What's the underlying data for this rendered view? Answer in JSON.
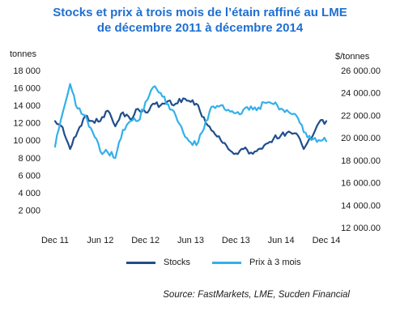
{
  "chart_data": {
    "type": "line",
    "title": [
      "Stocks et prix à trois mois de l’étain raffiné  au LME",
      "de décembre 2011 à décembre 2014"
    ],
    "left_axis": {
      "label": "tonnes",
      "ylim": [
        0,
        18000
      ],
      "ticks": [
        2000,
        4000,
        6000,
        8000,
        10000,
        12000,
        14000,
        16000,
        18000
      ],
      "tick_labels": [
        "2 000",
        "4 000",
        "6 000",
        "8 000",
        "10 000",
        "12 000",
        "14 000",
        "16 000",
        "18 000"
      ]
    },
    "right_axis": {
      "label": "$/tonnes",
      "ylim": [
        12000,
        26000
      ],
      "ticks": [
        12000,
        14000,
        16000,
        18000,
        20000,
        22000,
        24000,
        26000
      ],
      "tick_labels": [
        "12 000.00",
        "14 000.00",
        "16 000.00",
        "18 000.00",
        "20 000.00",
        "22 000.00",
        "24 000.00",
        "26 000.00"
      ]
    },
    "x_axis": {
      "range": [
        "2011-12",
        "2014-12"
      ],
      "ticks": [
        "2011-12",
        "2012-06",
        "2012-12",
        "2013-06",
        "2013-12",
        "2014-06",
        "2014-12"
      ],
      "tick_labels": [
        "Dec 11",
        "Jun 12",
        "Dec 12",
        "Jun 13",
        "Dec 13",
        "Jun 14",
        "Dec 14"
      ]
    },
    "grid": false,
    "legend_position": "bottom",
    "series": [
      {
        "name": "Stocks",
        "axis": "left",
        "color": "#1f4e8c",
        "points": [
          [
            "2011-12",
            12200
          ],
          [
            "2012-01",
            11500
          ],
          [
            "2012-02",
            9000
          ],
          [
            "2012-03",
            11000
          ],
          [
            "2012-04",
            12800
          ],
          [
            "2012-05",
            12200
          ],
          [
            "2012-06",
            12200
          ],
          [
            "2012-07",
            13400
          ],
          [
            "2012-08",
            11600
          ],
          [
            "2012-09",
            13200
          ],
          [
            "2012-10",
            12400
          ],
          [
            "2012-11",
            13600
          ],
          [
            "2012-12",
            13200
          ],
          [
            "2013-01",
            14200
          ],
          [
            "2013-02",
            14000
          ],
          [
            "2013-03",
            14500
          ],
          [
            "2013-04",
            14200
          ],
          [
            "2013-05",
            14800
          ],
          [
            "2013-06",
            14400
          ],
          [
            "2013-07",
            14000
          ],
          [
            "2013-08",
            12000
          ],
          [
            "2013-09",
            11000
          ],
          [
            "2013-10",
            10000
          ],
          [
            "2013-11",
            9000
          ],
          [
            "2013-12",
            8500
          ],
          [
            "2014-01",
            9000
          ],
          [
            "2014-02",
            8600
          ],
          [
            "2014-03",
            9000
          ],
          [
            "2014-04",
            9600
          ],
          [
            "2014-05",
            10200
          ],
          [
            "2014-06",
            10600
          ],
          [
            "2014-07",
            11000
          ],
          [
            "2014-08",
            10800
          ],
          [
            "2014-09",
            9000
          ],
          [
            "2014-10",
            10200
          ],
          [
            "2014-11",
            12000
          ],
          [
            "2014-12",
            12200
          ]
        ]
      },
      {
        "name": "Prix à 3 mois",
        "axis": "right",
        "color": "#33b0ea",
        "points": [
          [
            "2011-12",
            19200
          ],
          [
            "2012-01",
            22200
          ],
          [
            "2012-02",
            24800
          ],
          [
            "2012-03",
            22600
          ],
          [
            "2012-04",
            22000
          ],
          [
            "2012-05",
            20500
          ],
          [
            "2012-06",
            18800
          ],
          [
            "2012-07",
            18700
          ],
          [
            "2012-08",
            18200
          ],
          [
            "2012-09",
            20700
          ],
          [
            "2012-10",
            21500
          ],
          [
            "2012-11",
            21500
          ],
          [
            "2012-12",
            23200
          ],
          [
            "2013-01",
            24500
          ],
          [
            "2013-02",
            24000
          ],
          [
            "2013-03",
            23000
          ],
          [
            "2013-04",
            22000
          ],
          [
            "2013-05",
            20500
          ],
          [
            "2013-06",
            19600
          ],
          [
            "2013-07",
            19600
          ],
          [
            "2013-08",
            21500
          ],
          [
            "2013-09",
            22800
          ],
          [
            "2013-10",
            22900
          ],
          [
            "2013-11",
            22500
          ],
          [
            "2013-12",
            22200
          ],
          [
            "2014-01",
            22500
          ],
          [
            "2014-02",
            22800
          ],
          [
            "2014-03",
            22700
          ],
          [
            "2014-04",
            23100
          ],
          [
            "2014-05",
            23000
          ],
          [
            "2014-06",
            22600
          ],
          [
            "2014-07",
            22300
          ],
          [
            "2014-08",
            22000
          ],
          [
            "2014-09",
            20500
          ],
          [
            "2014-10",
            19800
          ],
          [
            "2014-11",
            19800
          ],
          [
            "2014-12",
            19700
          ]
        ]
      }
    ],
    "source": "Source: FastMarkets, LME, Sucden Financial"
  }
}
